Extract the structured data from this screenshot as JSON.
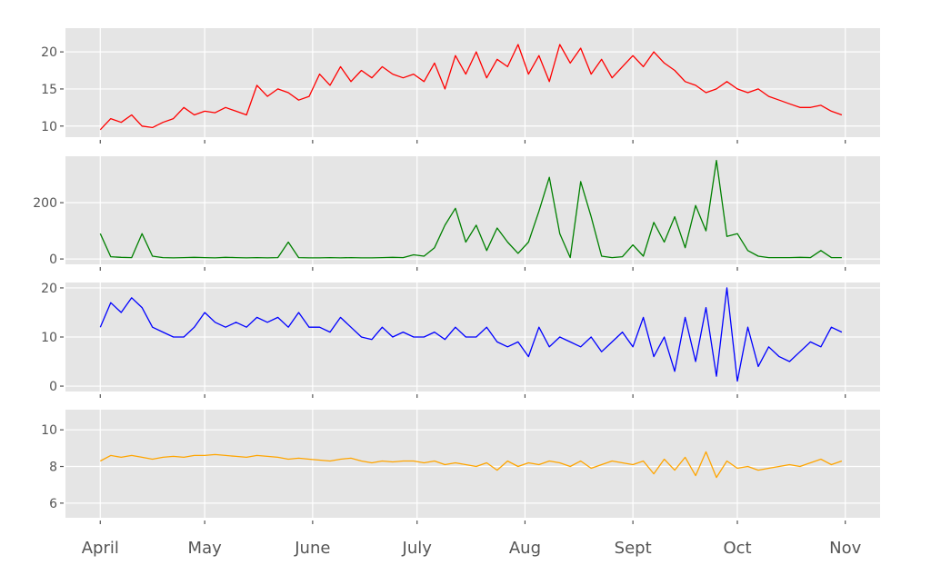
{
  "chart_data": [
    {
      "type": "line",
      "color": "#ff0000",
      "ylim": [
        8.5,
        23.2
      ],
      "yticks": [
        10,
        15,
        20
      ],
      "grid": true,
      "series": [
        {
          "values": [
            9.5,
            11,
            10.5,
            11.5,
            10,
            9.8,
            10.5,
            11,
            12.5,
            11.5,
            12,
            11.8,
            12.5,
            12,
            11.5,
            15.5,
            14,
            15,
            14.5,
            13.5,
            14,
            17,
            15.5,
            18,
            16,
            17.5,
            16.5,
            18,
            17,
            16.5,
            17,
            16,
            18.5,
            15,
            19.5,
            17,
            20,
            16.5,
            19,
            18,
            21,
            17,
            19.5,
            16,
            21,
            18.5,
            20.5,
            17,
            19,
            16.5,
            18,
            19.5,
            18,
            20,
            18.5,
            17.5,
            16,
            15.5,
            14.5,
            15,
            16,
            15,
            14.5,
            15,
            14,
            13.5,
            13,
            12.5,
            12.5,
            12.8,
            12,
            11.5
          ]
        }
      ]
    },
    {
      "type": "line",
      "color": "#008000",
      "ylim": [
        -19,
        365
      ],
      "yticks": [
        0,
        200
      ],
      "grid": true,
      "series": [
        {
          "values": [
            90,
            8,
            6,
            5,
            90,
            10,
            5,
            4,
            5,
            6,
            5,
            4,
            6,
            5,
            4,
            5,
            4,
            5,
            60,
            5,
            4,
            4,
            5,
            4,
            5,
            4,
            4,
            5,
            6,
            5,
            15,
            10,
            40,
            120,
            180,
            60,
            120,
            30,
            110,
            60,
            20,
            60,
            170,
            290,
            90,
            5,
            275,
            150,
            10,
            5,
            8,
            50,
            10,
            130,
            60,
            150,
            40,
            190,
            100,
            350,
            80,
            90,
            30,
            10,
            5,
            5,
            5,
            6,
            5,
            30,
            5,
            5
          ]
        }
      ]
    },
    {
      "type": "line",
      "color": "#0000ff",
      "ylim": [
        -1.1,
        21.1
      ],
      "yticks": [
        0,
        10,
        20
      ],
      "grid": true,
      "series": [
        {
          "values": [
            12,
            17,
            15,
            18,
            16,
            12,
            11,
            10,
            10,
            12,
            15,
            13,
            12,
            13,
            12,
            14,
            13,
            14,
            12,
            15,
            12,
            12,
            11,
            14,
            12,
            10,
            9.5,
            12,
            10,
            11,
            10,
            10,
            11,
            9.5,
            12,
            10,
            10,
            12,
            9,
            8,
            9,
            6,
            12,
            8,
            10,
            9,
            8,
            10,
            7,
            9,
            11,
            8,
            14,
            6,
            10,
            3,
            14,
            5,
            16,
            2,
            20,
            1,
            12,
            4,
            8,
            6,
            5,
            7,
            9,
            8,
            12,
            11
          ]
        }
      ]
    },
    {
      "type": "line",
      "color": "#ffa500",
      "ylim": [
        5.2,
        11.1
      ],
      "yticks": [
        6,
        8,
        10
      ],
      "grid": true,
      "series": [
        {
          "values": [
            8.3,
            8.6,
            8.5,
            8.6,
            8.5,
            8.4,
            8.5,
            8.55,
            8.5,
            8.6,
            8.6,
            8.65,
            8.6,
            8.55,
            8.5,
            8.6,
            8.55,
            8.5,
            8.4,
            8.45,
            8.4,
            8.35,
            8.3,
            8.4,
            8.45,
            8.3,
            8.2,
            8.3,
            8.25,
            8.3,
            8.3,
            8.2,
            8.3,
            8.1,
            8.2,
            8.1,
            8.0,
            8.2,
            7.8,
            8.3,
            8.0,
            8.2,
            8.1,
            8.3,
            8.2,
            8.0,
            8.3,
            7.9,
            8.1,
            8.3,
            8.2,
            8.1,
            8.3,
            7.6,
            8.4,
            7.8,
            8.5,
            7.5,
            8.8,
            7.4,
            8.3,
            7.9,
            8.0,
            7.8,
            7.9,
            8.0,
            8.1,
            8.0,
            8.2,
            8.4,
            8.1,
            8.3
          ]
        }
      ]
    }
  ],
  "dates": [
    "04-01",
    "04-04",
    "04-07",
    "04-10",
    "04-13",
    "04-16",
    "04-19",
    "04-22",
    "04-25",
    "04-28",
    "05-01",
    "05-04",
    "05-07",
    "05-10",
    "05-13",
    "05-16",
    "05-19",
    "05-22",
    "05-25",
    "05-28",
    "05-31",
    "06-03",
    "06-06",
    "06-09",
    "06-12",
    "06-15",
    "06-18",
    "06-21",
    "06-24",
    "06-27",
    "06-30",
    "07-03",
    "07-06",
    "07-09",
    "07-12",
    "07-15",
    "07-18",
    "07-21",
    "07-24",
    "07-27",
    "07-30",
    "08-02",
    "08-05",
    "08-08",
    "08-11",
    "08-14",
    "08-17",
    "08-20",
    "08-23",
    "08-26",
    "08-29",
    "09-01",
    "09-04",
    "09-07",
    "09-10",
    "09-13",
    "09-16",
    "09-19",
    "09-22",
    "09-25",
    "09-28",
    "10-01",
    "10-04",
    "10-07",
    "10-10",
    "10-13",
    "10-16",
    "10-19",
    "10-22",
    "10-25",
    "10-28",
    "10-31"
  ],
  "xticks": [
    {
      "date": "04-01",
      "label": "April"
    },
    {
      "date": "05-01",
      "label": "May"
    },
    {
      "date": "06-01",
      "label": "June"
    },
    {
      "date": "07-01",
      "label": "July"
    },
    {
      "date": "08-01",
      "label": "Aug"
    },
    {
      "date": "09-01",
      "label": "Sept"
    },
    {
      "date": "10-01",
      "label": "Oct"
    },
    {
      "date": "11-01",
      "label": "Nov"
    }
  ],
  "xlim": [
    "03-22",
    "11-11"
  ],
  "panel_background": "#e5e5e5"
}
